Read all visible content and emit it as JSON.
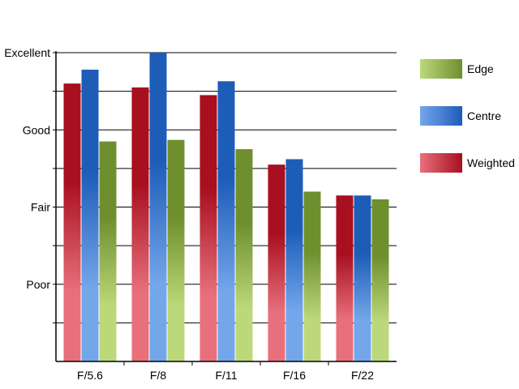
{
  "chart_data": {
    "type": "bar",
    "title": "",
    "xlabel": "",
    "ylabel": "",
    "categories": [
      "F/5.6",
      "F/8",
      "F/11",
      "F/16",
      "F/22"
    ],
    "y_tick_labels": [
      "Poor",
      "Fair",
      "Good",
      "Excellent"
    ],
    "y_tick_values": [
      1,
      2,
      3,
      4
    ],
    "ylim": [
      0,
      4
    ],
    "grid": "horizontal",
    "legend_position": "right",
    "series": [
      {
        "name": "Weighted",
        "values": [
          3.6,
          3.55,
          3.45,
          2.55,
          2.15
        ],
        "color_light": "#e8707c",
        "color_dark": "#a80f1f"
      },
      {
        "name": "Centre",
        "values": [
          3.78,
          4.0,
          3.63,
          2.62,
          2.15
        ],
        "color_light": "#74a6ea",
        "color_dark": "#1d5db8"
      },
      {
        "name": "Edge",
        "values": [
          2.85,
          2.87,
          2.75,
          2.2,
          2.1
        ],
        "color_light": "#bcd87a",
        "color_dark": "#6f8f2f"
      }
    ],
    "legend_order": [
      "Edge",
      "Centre",
      "Weighted"
    ]
  }
}
